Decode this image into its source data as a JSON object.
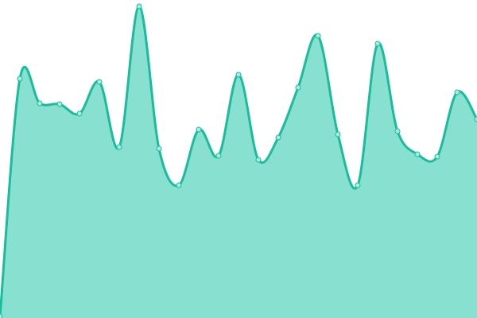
{
  "chart_data": {
    "type": "area",
    "title": "",
    "xlabel": "",
    "ylabel": "",
    "x": [
      0,
      1,
      2,
      3,
      4,
      5,
      6,
      7,
      8,
      9,
      10,
      11,
      12,
      13,
      14,
      15,
      16,
      17,
      18,
      19,
      20,
      21,
      22,
      23,
      24
    ],
    "values": [
      2,
      301,
      270,
      269,
      257,
      297,
      215,
      392,
      213,
      167,
      237,
      204,
      306,
      199,
      227,
      290,
      355,
      231,
      167,
      345,
      235,
      206,
      203,
      284,
      250
    ],
    "ylim": [
      0,
      400
    ],
    "xlim": [
      0,
      24
    ],
    "grid": false,
    "smooth": true,
    "colors": {
      "line": "#1abc9c",
      "fill": "#88e0d0",
      "point_fill": "#a8ece0"
    }
  }
}
